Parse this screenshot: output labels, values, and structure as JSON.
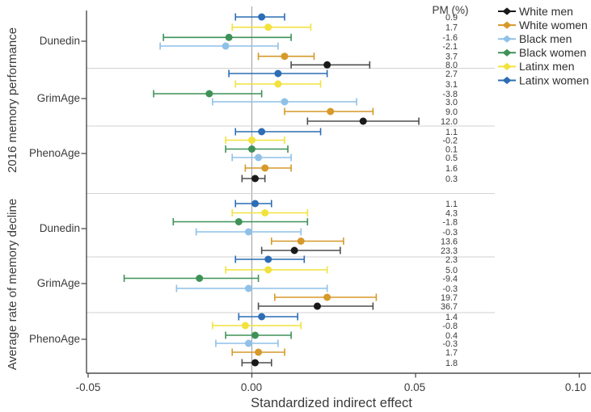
{
  "chart_data": {
    "type": "scatter",
    "subtype": "forest-plot-with-error-bars",
    "title": "",
    "xlabel": "Standardized indirect effect",
    "xlim": [
      -0.05,
      0.1
    ],
    "x_ticks": [
      -0.05,
      0.0,
      0.05,
      0.1
    ],
    "x_tick_labels": [
      "-0.05",
      "0.00",
      "0.05",
      "0.10"
    ],
    "grid": false,
    "zero_reference_line": 0.0,
    "pm_column_header": "PM (%)",
    "legend": {
      "position": "top-right",
      "entries": [
        {
          "name": "White men",
          "color": "#1a1a1a",
          "line_color": "#4f4f4f"
        },
        {
          "name": "White women",
          "color": "#d6992a",
          "line_color": "#d6992a"
        },
        {
          "name": "Black men",
          "color": "#8fc1e8",
          "line_color": "#8fc1e8"
        },
        {
          "name": "Black women",
          "color": "#3f9257",
          "line_color": "#3f9257"
        },
        {
          "name": "Latinx men",
          "color": "#f2e23c",
          "line_color": "#f2e23c"
        },
        {
          "name": "Latinx women",
          "color": "#2c6db4",
          "line_color": "#2c6db4"
        }
      ]
    },
    "row_order_top_to_bottom": [
      "Latinx women",
      "Latinx men",
      "Black women",
      "Black men",
      "White women",
      "White men"
    ],
    "panels": [
      {
        "label": "2016 memory performance",
        "groups": [
          {
            "name": "Dunedin",
            "rows": [
              {
                "subgroup": "Latinx women",
                "estimate": 0.003,
                "ci_low": -0.005,
                "ci_high": 0.01,
                "pm": "0.9"
              },
              {
                "subgroup": "Latinx men",
                "estimate": 0.005,
                "ci_low": -0.006,
                "ci_high": 0.018,
                "pm": "1.7"
              },
              {
                "subgroup": "Black women",
                "estimate": -0.007,
                "ci_low": -0.027,
                "ci_high": 0.012,
                "pm": "-1.6"
              },
              {
                "subgroup": "Black men",
                "estimate": -0.008,
                "ci_low": -0.028,
                "ci_high": 0.008,
                "pm": "-2.1"
              },
              {
                "subgroup": "White women",
                "estimate": 0.01,
                "ci_low": 0.002,
                "ci_high": 0.019,
                "pm": "3.7"
              },
              {
                "subgroup": "White men",
                "estimate": 0.023,
                "ci_low": 0.012,
                "ci_high": 0.036,
                "pm": "8.0"
              }
            ]
          },
          {
            "name": "GrimAge",
            "rows": [
              {
                "subgroup": "Latinx women",
                "estimate": 0.008,
                "ci_low": -0.007,
                "ci_high": 0.023,
                "pm": "2.7"
              },
              {
                "subgroup": "Latinx men",
                "estimate": 0.008,
                "ci_low": -0.005,
                "ci_high": 0.021,
                "pm": "3.1"
              },
              {
                "subgroup": "Black women",
                "estimate": -0.013,
                "ci_low": -0.03,
                "ci_high": 0.003,
                "pm": "-3.8"
              },
              {
                "subgroup": "Black men",
                "estimate": 0.01,
                "ci_low": -0.012,
                "ci_high": 0.032,
                "pm": "3.0"
              },
              {
                "subgroup": "White women",
                "estimate": 0.024,
                "ci_low": 0.01,
                "ci_high": 0.037,
                "pm": "9.0"
              },
              {
                "subgroup": "White men",
                "estimate": 0.034,
                "ci_low": 0.017,
                "ci_high": 0.051,
                "pm": "12.0"
              }
            ]
          },
          {
            "name": "PhenoAge",
            "rows": [
              {
                "subgroup": "Latinx women",
                "estimate": 0.003,
                "ci_low": -0.005,
                "ci_high": 0.021,
                "pm": "1.1"
              },
              {
                "subgroup": "Latinx men",
                "estimate": 0.0,
                "ci_low": -0.008,
                "ci_high": 0.01,
                "pm": "-0.2"
              },
              {
                "subgroup": "Black women",
                "estimate": 0.0,
                "ci_low": -0.008,
                "ci_high": 0.011,
                "pm": "0.1"
              },
              {
                "subgroup": "Black men",
                "estimate": 0.002,
                "ci_low": -0.006,
                "ci_high": 0.012,
                "pm": "0.5"
              },
              {
                "subgroup": "White women",
                "estimate": 0.004,
                "ci_low": -0.002,
                "ci_high": 0.012,
                "pm": "1.6"
              },
              {
                "subgroup": "White men",
                "estimate": 0.001,
                "ci_low": -0.003,
                "ci_high": 0.004,
                "pm": "0.3"
              }
            ]
          }
        ]
      },
      {
        "label": "Average rate of memory decline",
        "groups": [
          {
            "name": "Dunedin",
            "rows": [
              {
                "subgroup": "Latinx women",
                "estimate": 0.001,
                "ci_low": -0.005,
                "ci_high": 0.006,
                "pm": "1.1"
              },
              {
                "subgroup": "Latinx men",
                "estimate": 0.004,
                "ci_low": -0.006,
                "ci_high": 0.017,
                "pm": "4.3"
              },
              {
                "subgroup": "Black women",
                "estimate": -0.004,
                "ci_low": -0.024,
                "ci_high": 0.017,
                "pm": "-1.8"
              },
              {
                "subgroup": "Black men",
                "estimate": -0.001,
                "ci_low": -0.017,
                "ci_high": 0.015,
                "pm": "-0.3"
              },
              {
                "subgroup": "White women",
                "estimate": 0.015,
                "ci_low": 0.006,
                "ci_high": 0.028,
                "pm": "13.6"
              },
              {
                "subgroup": "White men",
                "estimate": 0.013,
                "ci_low": 0.003,
                "ci_high": 0.027,
                "pm": "23.3"
              }
            ]
          },
          {
            "name": "GrimAge",
            "rows": [
              {
                "subgroup": "Latinx women",
                "estimate": 0.005,
                "ci_low": -0.005,
                "ci_high": 0.016,
                "pm": "2.3"
              },
              {
                "subgroup": "Latinx men",
                "estimate": 0.005,
                "ci_low": -0.008,
                "ci_high": 0.023,
                "pm": "5.0"
              },
              {
                "subgroup": "Black women",
                "estimate": -0.016,
                "ci_low": -0.039,
                "ci_high": 0.002,
                "pm": "-9.4"
              },
              {
                "subgroup": "Black men",
                "estimate": -0.001,
                "ci_low": -0.023,
                "ci_high": 0.023,
                "pm": "-0.3"
              },
              {
                "subgroup": "White women",
                "estimate": 0.023,
                "ci_low": 0.007,
                "ci_high": 0.038,
                "pm": "19.7"
              },
              {
                "subgroup": "White men",
                "estimate": 0.02,
                "ci_low": 0.002,
                "ci_high": 0.037,
                "pm": "36.7"
              }
            ]
          },
          {
            "name": "PhenoAge",
            "rows": [
              {
                "subgroup": "Latinx women",
                "estimate": 0.003,
                "ci_low": -0.004,
                "ci_high": 0.014,
                "pm": "1.4"
              },
              {
                "subgroup": "Latinx men",
                "estimate": -0.002,
                "ci_low": -0.012,
                "ci_high": 0.015,
                "pm": "-0.8"
              },
              {
                "subgroup": "Black women",
                "estimate": 0.001,
                "ci_low": -0.008,
                "ci_high": 0.012,
                "pm": "0.4"
              },
              {
                "subgroup": "Black men",
                "estimate": -0.001,
                "ci_low": -0.011,
                "ci_high": 0.008,
                "pm": "-0.3"
              },
              {
                "subgroup": "White women",
                "estimate": 0.002,
                "ci_low": -0.006,
                "ci_high": 0.01,
                "pm": "1.7"
              },
              {
                "subgroup": "White men",
                "estimate": 0.001,
                "ci_low": -0.003,
                "ci_high": 0.006,
                "pm": "1.8"
              }
            ]
          }
        ]
      }
    ]
  }
}
